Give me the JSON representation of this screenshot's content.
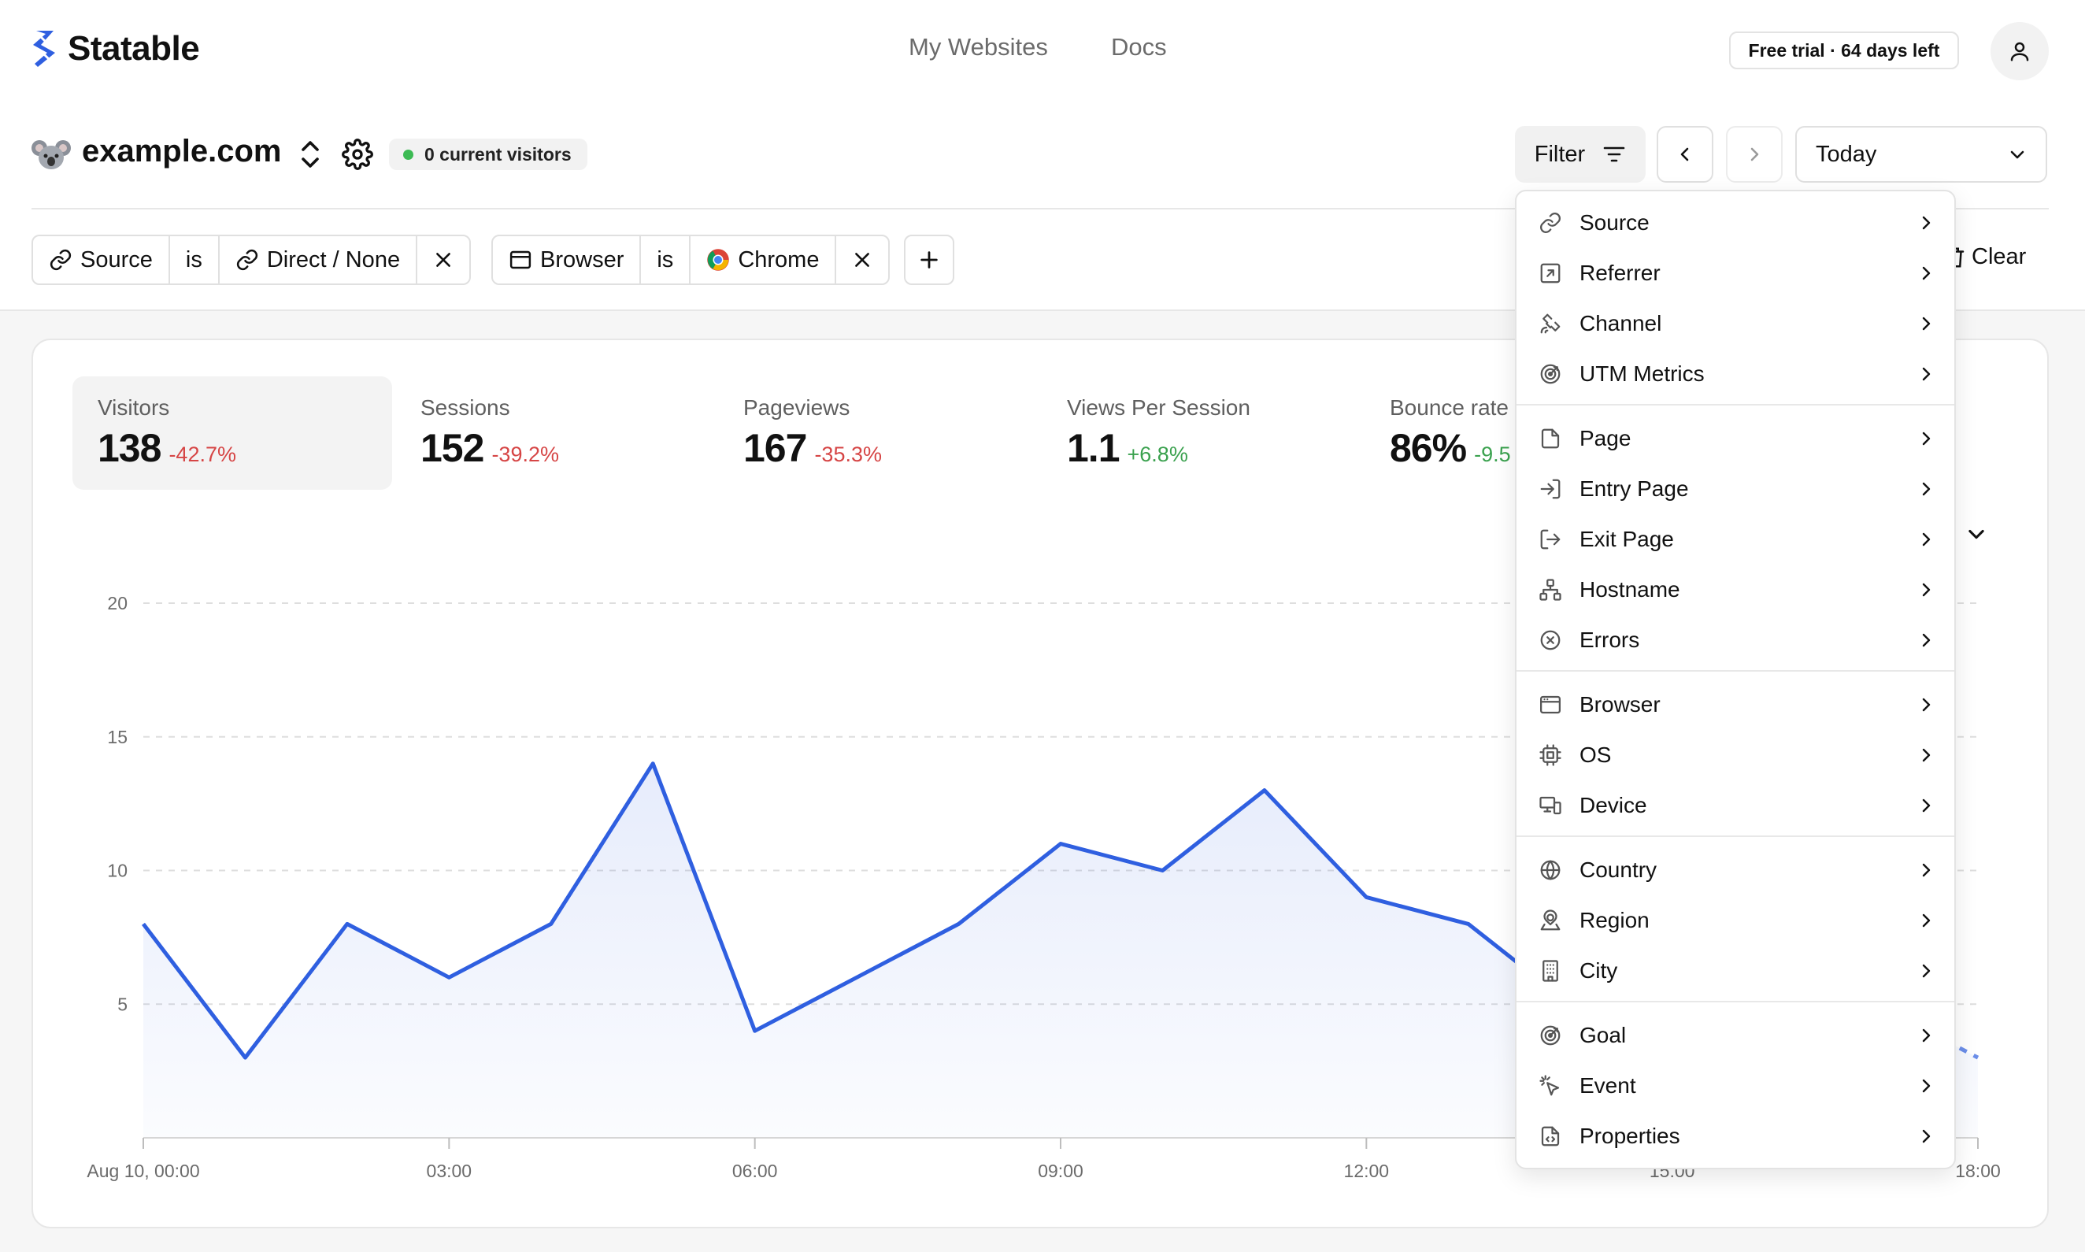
{
  "header": {
    "app_name": "Statable",
    "nav": [
      "My Websites",
      "Docs"
    ],
    "trial_badge": "Free trial · 64 days left",
    "account_icon": "user-icon"
  },
  "site": {
    "name": "example.com",
    "current_visitors": "0 current visitors"
  },
  "toolbar": {
    "filter_label": "Filter",
    "date_range": "Today",
    "clear_label": "Clear"
  },
  "filters": [
    {
      "field": "Source",
      "operator": "is",
      "value": "Direct / None"
    },
    {
      "field": "Browser",
      "operator": "is",
      "value": "Chrome"
    }
  ],
  "metrics": [
    {
      "label": "Visitors",
      "value": "138",
      "change": "-42.7%",
      "trend": "negative"
    },
    {
      "label": "Sessions",
      "value": "152",
      "change": "-39.2%",
      "trend": "negative"
    },
    {
      "label": "Pageviews",
      "value": "167",
      "change": "-35.3%",
      "trend": "negative"
    },
    {
      "label": "Views Per Session",
      "value": "1.1",
      "change": "+6.8%",
      "trend": "positive"
    },
    {
      "label": "Bounce rate",
      "value": "86%",
      "change": "-9.5",
      "trend": "positive"
    }
  ],
  "filter_menu": {
    "groups": [
      [
        {
          "label": "Source",
          "icon": "link-icon"
        },
        {
          "label": "Referrer",
          "icon": "external-link-icon"
        },
        {
          "label": "Channel",
          "icon": "satellite-icon"
        },
        {
          "label": "UTM Metrics",
          "icon": "target-icon"
        }
      ],
      [
        {
          "label": "Page",
          "icon": "file-icon"
        },
        {
          "label": "Entry Page",
          "icon": "log-in-icon"
        },
        {
          "label": "Exit Page",
          "icon": "log-out-icon"
        },
        {
          "label": "Hostname",
          "icon": "network-icon"
        },
        {
          "label": "Errors",
          "icon": "x-circle-icon"
        }
      ],
      [
        {
          "label": "Browser",
          "icon": "browser-icon"
        },
        {
          "label": "OS",
          "icon": "cpu-icon"
        },
        {
          "label": "Device",
          "icon": "devices-icon"
        }
      ],
      [
        {
          "label": "Country",
          "icon": "globe-icon"
        },
        {
          "label": "Region",
          "icon": "map-pin-icon"
        },
        {
          "label": "City",
          "icon": "building-icon"
        }
      ],
      [
        {
          "label": "Goal",
          "icon": "goal-icon"
        },
        {
          "label": "Event",
          "icon": "pointer-click-icon"
        },
        {
          "label": "Properties",
          "icon": "file-code-icon"
        }
      ]
    ]
  },
  "chart_data": {
    "type": "area",
    "x": [
      "00:00",
      "01:00",
      "02:00",
      "03:00",
      "04:00",
      "05:00",
      "06:00",
      "07:00",
      "08:00",
      "09:00",
      "10:00",
      "11:00",
      "12:00",
      "13:00",
      "14:00",
      "15:00",
      "16:00",
      "17:00",
      "18:00"
    ],
    "series": [
      {
        "values": [
          8,
          3,
          8,
          6,
          8,
          14,
          4,
          6,
          8,
          11,
          10,
          13,
          9,
          8,
          5,
          4,
          6,
          5,
          3
        ]
      }
    ],
    "x_tick_labels": [
      "Aug 10, 00:00",
      "03:00",
      "06:00",
      "09:00",
      "12:00",
      "15:00",
      "18:00"
    ],
    "y_tick_labels": [
      "5",
      "10",
      "15",
      "20"
    ],
    "ylim": [
      0,
      20
    ],
    "grid": true,
    "color": "#2f5fe0",
    "incomplete_last_segment": true
  }
}
